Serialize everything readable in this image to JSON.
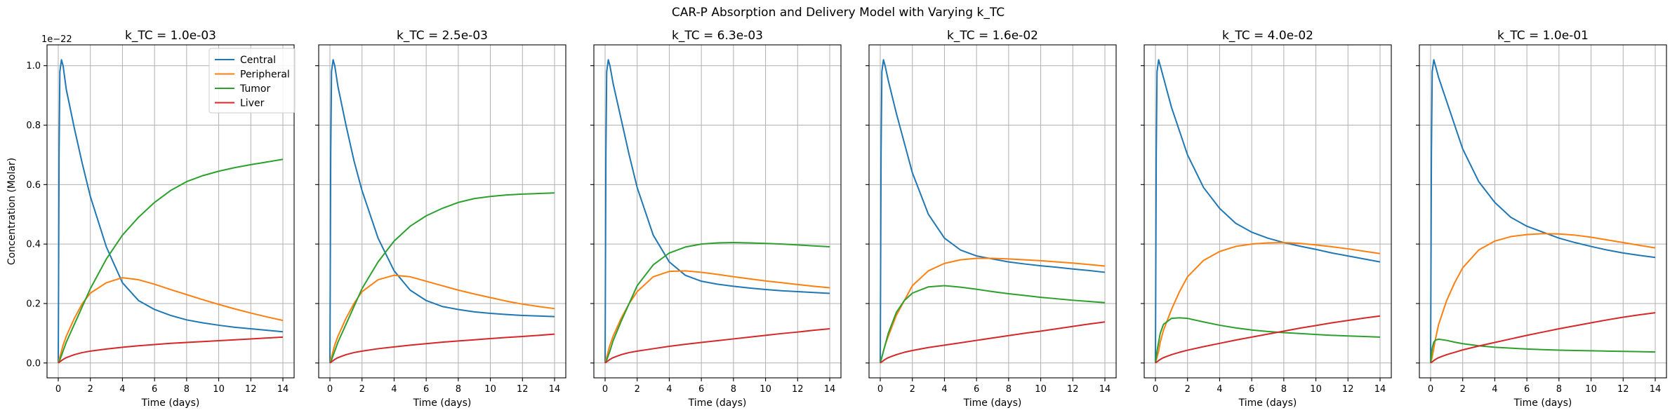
{
  "figure": {
    "title": "CAR-P Absorption and Delivery Model with Varying k_TC"
  },
  "chart_data": {
    "type": "line",
    "title": "CAR-P Absorption and Delivery Model with Varying k_TC",
    "xlabel": "Time (days)",
    "ylabel": "Concentration (Molar)",
    "y_scale_factor": "1e−22",
    "xlim": [
      -0.7,
      14.7
    ],
    "ylim": [
      -0.05,
      1.07
    ],
    "xticks": [
      "0",
      "2",
      "4",
      "6",
      "8",
      "10",
      "12",
      "14"
    ],
    "yticks": [
      "0.0",
      "0.2",
      "0.4",
      "0.6",
      "0.8",
      "1.0"
    ],
    "grid": true,
    "legend_placement": "top-right of first panel",
    "series_names": [
      "Central",
      "Peripheral",
      "Tumor",
      "Liver"
    ],
    "colors": {
      "Central": "#1f77b4",
      "Peripheral": "#ff7f0e",
      "Tumor": "#2ca02c",
      "Liver": "#d62728"
    },
    "x": [
      0,
      0.05,
      0.1,
      0.2,
      0.3,
      0.5,
      1,
      1.5,
      2,
      3,
      4,
      5,
      6,
      7,
      8,
      9,
      10,
      11,
      12,
      13,
      14
    ],
    "panels": [
      {
        "title": "k_TC = 1.0e-03",
        "series": [
          {
            "name": "Central",
            "values": [
              0,
              0.7,
              0.98,
              1.02,
              1.0,
              0.92,
              0.79,
              0.67,
              0.56,
              0.39,
              0.27,
              0.21,
              0.18,
              0.16,
              0.145,
              0.135,
              0.127,
              0.12,
              0.115,
              0.11,
              0.105
            ]
          },
          {
            "name": "Peripheral",
            "values": [
              0,
              0.01,
              0.02,
              0.04,
              0.06,
              0.09,
              0.15,
              0.2,
              0.235,
              0.27,
              0.287,
              0.28,
              0.265,
              0.247,
              0.23,
              0.213,
              0.197,
              0.182,
              0.168,
              0.155,
              0.143
            ]
          },
          {
            "name": "Tumor",
            "values": [
              0,
              0.005,
              0.01,
              0.025,
              0.04,
              0.07,
              0.13,
              0.19,
              0.25,
              0.35,
              0.43,
              0.49,
              0.54,
              0.58,
              0.61,
              0.63,
              0.645,
              0.657,
              0.667,
              0.676,
              0.685
            ]
          },
          {
            "name": "Liver",
            "values": [
              0,
              0.002,
              0.004,
              0.008,
              0.012,
              0.018,
              0.028,
              0.035,
              0.04,
              0.047,
              0.053,
              0.058,
              0.062,
              0.066,
              0.069,
              0.072,
              0.075,
              0.078,
              0.081,
              0.084,
              0.087
            ]
          }
        ]
      },
      {
        "title": "k_TC = 2.5e-03",
        "series": [
          {
            "name": "Central",
            "values": [
              0,
              0.7,
              0.98,
              1.02,
              1.0,
              0.93,
              0.8,
              0.68,
              0.58,
              0.42,
              0.31,
              0.245,
              0.21,
              0.19,
              0.18,
              0.172,
              0.167,
              0.163,
              0.16,
              0.158,
              0.156
            ]
          },
          {
            "name": "Peripheral",
            "values": [
              0,
              0.01,
              0.02,
              0.04,
              0.06,
              0.09,
              0.15,
              0.2,
              0.24,
              0.28,
              0.295,
              0.29,
              0.275,
              0.26,
              0.245,
              0.232,
              0.22,
              0.208,
              0.198,
              0.19,
              0.183
            ]
          },
          {
            "name": "Tumor",
            "values": [
              0,
              0.005,
              0.01,
              0.025,
              0.04,
              0.07,
              0.13,
              0.19,
              0.25,
              0.34,
              0.41,
              0.46,
              0.495,
              0.52,
              0.54,
              0.553,
              0.56,
              0.565,
              0.568,
              0.57,
              0.572
            ]
          },
          {
            "name": "Liver",
            "values": [
              0,
              0.002,
              0.004,
              0.008,
              0.012,
              0.018,
              0.028,
              0.035,
              0.04,
              0.048,
              0.054,
              0.06,
              0.065,
              0.07,
              0.074,
              0.078,
              0.082,
              0.086,
              0.089,
              0.093,
              0.097
            ]
          }
        ]
      },
      {
        "title": "k_TC = 6.3e-03",
        "series": [
          {
            "name": "Central",
            "values": [
              0,
              0.7,
              0.98,
              1.02,
              1.0,
              0.94,
              0.82,
              0.7,
              0.59,
              0.43,
              0.34,
              0.295,
              0.275,
              0.265,
              0.258,
              0.252,
              0.247,
              0.243,
              0.24,
              0.237,
              0.234
            ]
          },
          {
            "name": "Peripheral",
            "values": [
              0,
              0.01,
              0.02,
              0.04,
              0.06,
              0.09,
              0.15,
              0.2,
              0.24,
              0.29,
              0.308,
              0.31,
              0.305,
              0.298,
              0.29,
              0.283,
              0.276,
              0.27,
              0.264,
              0.258,
              0.253
            ]
          },
          {
            "name": "Tumor",
            "values": [
              0,
              0.005,
              0.01,
              0.025,
              0.04,
              0.075,
              0.14,
              0.2,
              0.26,
              0.33,
              0.37,
              0.39,
              0.4,
              0.404,
              0.405,
              0.404,
              0.402,
              0.4,
              0.397,
              0.394,
              0.391
            ]
          },
          {
            "name": "Liver",
            "values": [
              0,
              0.002,
              0.004,
              0.008,
              0.012,
              0.018,
              0.028,
              0.035,
              0.04,
              0.048,
              0.056,
              0.063,
              0.069,
              0.075,
              0.081,
              0.087,
              0.093,
              0.099,
              0.104,
              0.11,
              0.115
            ]
          }
        ]
      },
      {
        "title": "k_TC = 1.6e-02",
        "series": [
          {
            "name": "Central",
            "values": [
              0,
              0.7,
              0.98,
              1.02,
              1.0,
              0.95,
              0.84,
              0.74,
              0.64,
              0.5,
              0.42,
              0.38,
              0.36,
              0.35,
              0.34,
              0.333,
              0.327,
              0.322,
              0.316,
              0.311,
              0.305
            ]
          },
          {
            "name": "Peripheral",
            "values": [
              0,
              0.01,
              0.02,
              0.04,
              0.06,
              0.09,
              0.16,
              0.21,
              0.26,
              0.31,
              0.335,
              0.347,
              0.352,
              0.352,
              0.35,
              0.347,
              0.344,
              0.34,
              0.336,
              0.331,
              0.326
            ]
          },
          {
            "name": "Tumor",
            "values": [
              0,
              0.01,
              0.02,
              0.04,
              0.06,
              0.1,
              0.17,
              0.21,
              0.235,
              0.256,
              0.26,
              0.255,
              0.248,
              0.24,
              0.233,
              0.227,
              0.221,
              0.216,
              0.211,
              0.207,
              0.203
            ]
          },
          {
            "name": "Liver",
            "values": [
              0,
              0.002,
              0.004,
              0.008,
              0.012,
              0.018,
              0.028,
              0.036,
              0.042,
              0.052,
              0.06,
              0.068,
              0.076,
              0.084,
              0.092,
              0.1,
              0.107,
              0.115,
              0.123,
              0.131,
              0.138
            ]
          }
        ]
      },
      {
        "title": "k_TC = 4.0e-02",
        "series": [
          {
            "name": "Central",
            "values": [
              0,
              0.7,
              0.98,
              1.02,
              1.0,
              0.96,
              0.86,
              0.78,
              0.7,
              0.59,
              0.52,
              0.47,
              0.44,
              0.42,
              0.405,
              0.393,
              0.382,
              0.37,
              0.36,
              0.35,
              0.34
            ]
          },
          {
            "name": "Peripheral",
            "values": [
              0,
              0.01,
              0.02,
              0.04,
              0.07,
              0.11,
              0.18,
              0.24,
              0.29,
              0.345,
              0.375,
              0.392,
              0.4,
              0.404,
              0.405,
              0.402,
              0.397,
              0.391,
              0.384,
              0.376,
              0.368
            ]
          },
          {
            "name": "Tumor",
            "values": [
              0,
              0.02,
              0.04,
              0.07,
              0.1,
              0.13,
              0.15,
              0.152,
              0.15,
              0.138,
              0.127,
              0.118,
              0.111,
              0.106,
              0.102,
              0.099,
              0.096,
              0.093,
              0.091,
              0.089,
              0.087
            ]
          },
          {
            "name": "Liver",
            "values": [
              0,
              0.002,
              0.004,
              0.008,
              0.012,
              0.018,
              0.028,
              0.036,
              0.043,
              0.055,
              0.066,
              0.077,
              0.087,
              0.097,
              0.107,
              0.117,
              0.126,
              0.135,
              0.143,
              0.151,
              0.158
            ]
          }
        ]
      },
      {
        "title": "k_TC = 1.0e-01",
        "series": [
          {
            "name": "Central",
            "values": [
              0,
              0.7,
              0.98,
              1.02,
              1.0,
              0.96,
              0.88,
              0.8,
              0.72,
              0.61,
              0.54,
              0.49,
              0.46,
              0.44,
              0.42,
              0.405,
              0.392,
              0.38,
              0.37,
              0.362,
              0.355
            ]
          },
          {
            "name": "Peripheral",
            "values": [
              0,
              0.01,
              0.02,
              0.05,
              0.08,
              0.13,
              0.21,
              0.27,
              0.32,
              0.38,
              0.41,
              0.425,
              0.432,
              0.435,
              0.434,
              0.43,
              0.423,
              0.414,
              0.405,
              0.396,
              0.387
            ]
          },
          {
            "name": "Tumor",
            "values": [
              0,
              0.03,
              0.05,
              0.07,
              0.077,
              0.08,
              0.076,
              0.07,
              0.065,
              0.058,
              0.053,
              0.05,
              0.047,
              0.045,
              0.043,
              0.042,
              0.041,
              0.04,
              0.039,
              0.038,
              0.037
            ]
          },
          {
            "name": "Liver",
            "values": [
              0,
              0.002,
              0.004,
              0.008,
              0.012,
              0.018,
              0.028,
              0.036,
              0.044,
              0.057,
              0.069,
              0.081,
              0.093,
              0.104,
              0.115,
              0.125,
              0.135,
              0.145,
              0.154,
              0.162,
              0.169
            ]
          }
        ]
      }
    ]
  }
}
